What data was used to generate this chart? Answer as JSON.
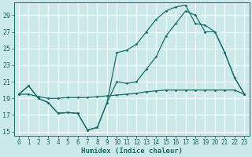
{
  "xlabel": "Humidex (Indice chaleur)",
  "bg_color": "#cce9e9",
  "grid_color": "#aad4d4",
  "line_color": "#1a6b6b",
  "xlim": [
    -0.5,
    23.5
  ],
  "ylim": [
    14.5,
    30.5
  ],
  "xticks": [
    0,
    1,
    2,
    3,
    4,
    5,
    6,
    7,
    8,
    9,
    10,
    11,
    12,
    13,
    14,
    15,
    16,
    17,
    18,
    19,
    20,
    21,
    22,
    23
  ],
  "yticks": [
    15,
    17,
    19,
    21,
    23,
    25,
    27,
    29
  ],
  "curve1_x": [
    0,
    1,
    2,
    3,
    4,
    5,
    6,
    7,
    8,
    9,
    10,
    11,
    12,
    13,
    14,
    15,
    16,
    17,
    18,
    19,
    20,
    21,
    22,
    23
  ],
  "curve1_y": [
    19.5,
    20.5,
    19.0,
    18.5,
    17.2,
    17.3,
    17.2,
    15.2,
    15.5,
    18.5,
    21.0,
    20.8,
    21.0,
    22.5,
    24.0,
    26.5,
    28.0,
    29.5,
    29.0,
    27.0,
    27.0,
    24.5,
    21.5,
    19.5
  ],
  "curve2_x": [
    0,
    1,
    2,
    3,
    4,
    5,
    6,
    7,
    8,
    9,
    10,
    11,
    12,
    13,
    14,
    15,
    16,
    17,
    18,
    19,
    20,
    21,
    22,
    23
  ],
  "curve2_y": [
    19.5,
    20.5,
    19.0,
    18.5,
    17.2,
    17.3,
    17.2,
    15.2,
    15.5,
    18.5,
    24.5,
    24.8,
    25.5,
    27.0,
    28.5,
    29.5,
    30.0,
    30.2,
    28.0,
    27.8,
    27.0,
    24.5,
    21.5,
    19.5
  ],
  "curve3_x": [
    0,
    1,
    2,
    3,
    4,
    5,
    6,
    7,
    8,
    9,
    10,
    11,
    12,
    13,
    14,
    15,
    16,
    17,
    18,
    19,
    20,
    21,
    22,
    23
  ],
  "curve3_y": [
    19.5,
    19.5,
    19.2,
    19.0,
    19.0,
    19.1,
    19.1,
    19.1,
    19.2,
    19.3,
    19.4,
    19.5,
    19.6,
    19.8,
    19.9,
    20.0,
    20.0,
    20.0,
    20.0,
    20.0,
    20.0,
    20.0,
    20.0,
    19.5
  ],
  "tick_fontsize": 5.5,
  "xlabel_fontsize": 6.5,
  "marker_size": 1.8,
  "line_width": 0.9
}
